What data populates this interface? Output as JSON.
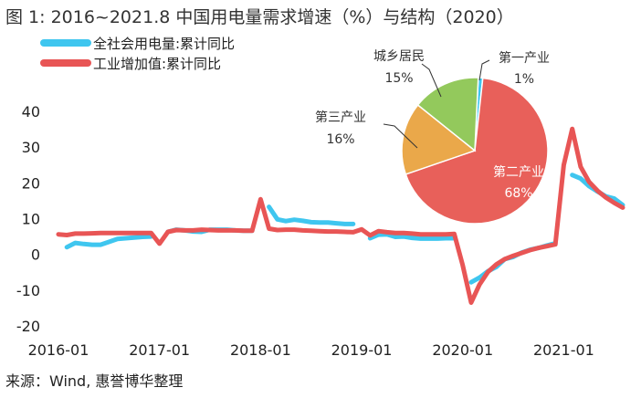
{
  "figure": {
    "title": "图 1: 2016~2021.8 中国用电量需求增速（%）与结构（2020）",
    "source": "来源：Wind, 惠誉博华整理"
  },
  "colors": {
    "electricity": "#3fc6ef",
    "industry": "#e85555",
    "pie_tertiary": "#eaa84a",
    "pie_residential": "#93c95c",
    "pie_primary": "#3fc6ef",
    "pie_secondary": "#e8605a"
  },
  "chart_data": [
    {
      "type": "line",
      "title": "",
      "xlabel": "",
      "ylabel": "",
      "ylim": [
        -20,
        40
      ],
      "yticks": [
        "40",
        "30",
        "20",
        "10",
        "0",
        "-10",
        "-20"
      ],
      "xticks": [
        "2016-01",
        "2017-01",
        "2018-01",
        "2019-01",
        "2020-01",
        "2021-01"
      ],
      "grid": false,
      "legend_position": "top-left",
      "series": [
        {
          "name": "全社会用电量:累计同比",
          "color": "#3fc6ef",
          "points": [
            [
              "2016-02",
              2.0
            ],
            [
              "2016-03",
              3.2
            ],
            [
              "2016-04",
              2.9
            ],
            [
              "2016-05",
              2.7
            ],
            [
              "2016-06",
              2.7
            ],
            [
              "2016-07",
              3.5
            ],
            [
              "2016-08",
              4.3
            ],
            [
              "2016-09",
              4.5
            ],
            [
              "2016-10",
              4.7
            ],
            [
              "2016-11",
              4.9
            ],
            [
              "2016-12",
              5.0
            ],
            [
              "2017-02",
              6.3
            ],
            [
              "2017-03",
              6.9
            ],
            [
              "2017-04",
              6.7
            ],
            [
              "2017-05",
              6.4
            ],
            [
              "2017-06",
              6.3
            ],
            [
              "2017-07",
              6.9
            ],
            [
              "2017-08",
              6.9
            ],
            [
              "2017-09",
              6.9
            ],
            [
              "2017-10",
              6.7
            ],
            [
              "2017-11",
              6.6
            ],
            [
              "2017-12",
              6.6
            ],
            [
              "2018-02",
              13.3
            ],
            [
              "2018-03",
              9.8
            ],
            [
              "2018-04",
              9.3
            ],
            [
              "2018-05",
              9.7
            ],
            [
              "2018-06",
              9.4
            ],
            [
              "2018-07",
              9.0
            ],
            [
              "2018-08",
              8.9
            ],
            [
              "2018-09",
              8.9
            ],
            [
              "2018-10",
              8.7
            ],
            [
              "2018-11",
              8.5
            ],
            [
              "2018-12",
              8.5
            ],
            [
              "2019-02",
              4.5
            ],
            [
              "2019-03",
              5.5
            ],
            [
              "2019-04",
              5.6
            ],
            [
              "2019-05",
              4.9
            ],
            [
              "2019-06",
              5.0
            ],
            [
              "2019-07",
              4.6
            ],
            [
              "2019-08",
              4.4
            ],
            [
              "2019-09",
              4.4
            ],
            [
              "2019-10",
              4.4
            ],
            [
              "2019-11",
              4.5
            ],
            [
              "2019-12",
              4.5
            ],
            [
              "2020-02",
              -7.8
            ],
            [
              "2020-03",
              -6.5
            ],
            [
              "2020-04",
              -4.7
            ],
            [
              "2020-05",
              -3.5
            ],
            [
              "2020-06",
              -1.3
            ],
            [
              "2020-07",
              -0.7
            ],
            [
              "2020-08",
              0.5
            ],
            [
              "2020-09",
              1.3
            ],
            [
              "2020-10",
              1.8
            ],
            [
              "2020-11",
              2.5
            ],
            [
              "2020-12",
              3.1
            ],
            [
              "2021-02",
              22.2
            ],
            [
              "2021-03",
              21.2
            ],
            [
              "2021-04",
              19.1
            ],
            [
              "2021-05",
              17.6
            ],
            [
              "2021-06",
              16.2
            ],
            [
              "2021-07",
              15.6
            ],
            [
              "2021-08",
              13.8
            ]
          ]
        },
        {
          "name": "工业增加值:累计同比",
          "color": "#e85555",
          "points": [
            [
              "2016-01",
              5.6
            ],
            [
              "2016-02",
              5.4
            ],
            [
              "2016-03",
              5.8
            ],
            [
              "2016-04",
              5.8
            ],
            [
              "2016-05",
              5.9
            ],
            [
              "2016-06",
              6.0
            ],
            [
              "2016-07",
              6.0
            ],
            [
              "2016-08",
              6.0
            ],
            [
              "2016-09",
              6.0
            ],
            [
              "2016-10",
              6.0
            ],
            [
              "2016-11",
              6.0
            ],
            [
              "2016-12",
              6.0
            ],
            [
              "2017-01",
              3.0
            ],
            [
              "2017-02",
              6.3
            ],
            [
              "2017-03",
              6.8
            ],
            [
              "2017-04",
              6.7
            ],
            [
              "2017-05",
              6.7
            ],
            [
              "2017-06",
              6.9
            ],
            [
              "2017-07",
              6.8
            ],
            [
              "2017-08",
              6.7
            ],
            [
              "2017-09",
              6.7
            ],
            [
              "2017-10",
              6.7
            ],
            [
              "2017-11",
              6.6
            ],
            [
              "2017-12",
              6.6
            ],
            [
              "2018-01",
              15.4
            ],
            [
              "2018-02",
              7.2
            ],
            [
              "2018-03",
              6.8
            ],
            [
              "2018-04",
              6.9
            ],
            [
              "2018-05",
              6.9
            ],
            [
              "2018-06",
              6.7
            ],
            [
              "2018-07",
              6.6
            ],
            [
              "2018-08",
              6.5
            ],
            [
              "2018-09",
              6.4
            ],
            [
              "2018-10",
              6.4
            ],
            [
              "2018-11",
              6.3
            ],
            [
              "2018-12",
              6.2
            ],
            [
              "2019-01",
              7.0
            ],
            [
              "2019-02",
              5.3
            ],
            [
              "2019-03",
              6.5
            ],
            [
              "2019-04",
              6.2
            ],
            [
              "2019-05",
              6.0
            ],
            [
              "2019-06",
              6.0
            ],
            [
              "2019-07",
              5.8
            ],
            [
              "2019-08",
              5.6
            ],
            [
              "2019-09",
              5.6
            ],
            [
              "2019-10",
              5.6
            ],
            [
              "2019-11",
              5.6
            ],
            [
              "2019-12",
              5.7
            ],
            [
              "2020-01",
              -3.0
            ],
            [
              "2020-02",
              -13.5
            ],
            [
              "2020-03",
              -8.4
            ],
            [
              "2020-04",
              -4.9
            ],
            [
              "2020-05",
              -2.8
            ],
            [
              "2020-06",
              -1.3
            ],
            [
              "2020-07",
              -0.4
            ],
            [
              "2020-08",
              0.4
            ],
            [
              "2020-09",
              1.2
            ],
            [
              "2020-10",
              1.8
            ],
            [
              "2020-11",
              2.3
            ],
            [
              "2020-12",
              2.8
            ],
            [
              "2021-01",
              25.0
            ],
            [
              "2021-02",
              35.1
            ],
            [
              "2021-03",
              24.5
            ],
            [
              "2021-04",
              20.3
            ],
            [
              "2021-05",
              17.8
            ],
            [
              "2021-06",
              15.9
            ],
            [
              "2021-07",
              14.4
            ],
            [
              "2021-08",
              13.1
            ]
          ]
        }
      ]
    },
    {
      "type": "pie",
      "title": "",
      "slices": [
        {
          "label": "第一产业",
          "value": 1,
          "display": "1%",
          "color": "#3fc6ef"
        },
        {
          "label": "第二产业",
          "value": 68,
          "display": "68%",
          "color": "#e8605a"
        },
        {
          "label": "第三产业",
          "value": 16,
          "display": "16%",
          "color": "#eaa84a"
        },
        {
          "label": "城乡居民",
          "value": 15,
          "display": "15%",
          "color": "#93c95c"
        }
      ]
    }
  ]
}
